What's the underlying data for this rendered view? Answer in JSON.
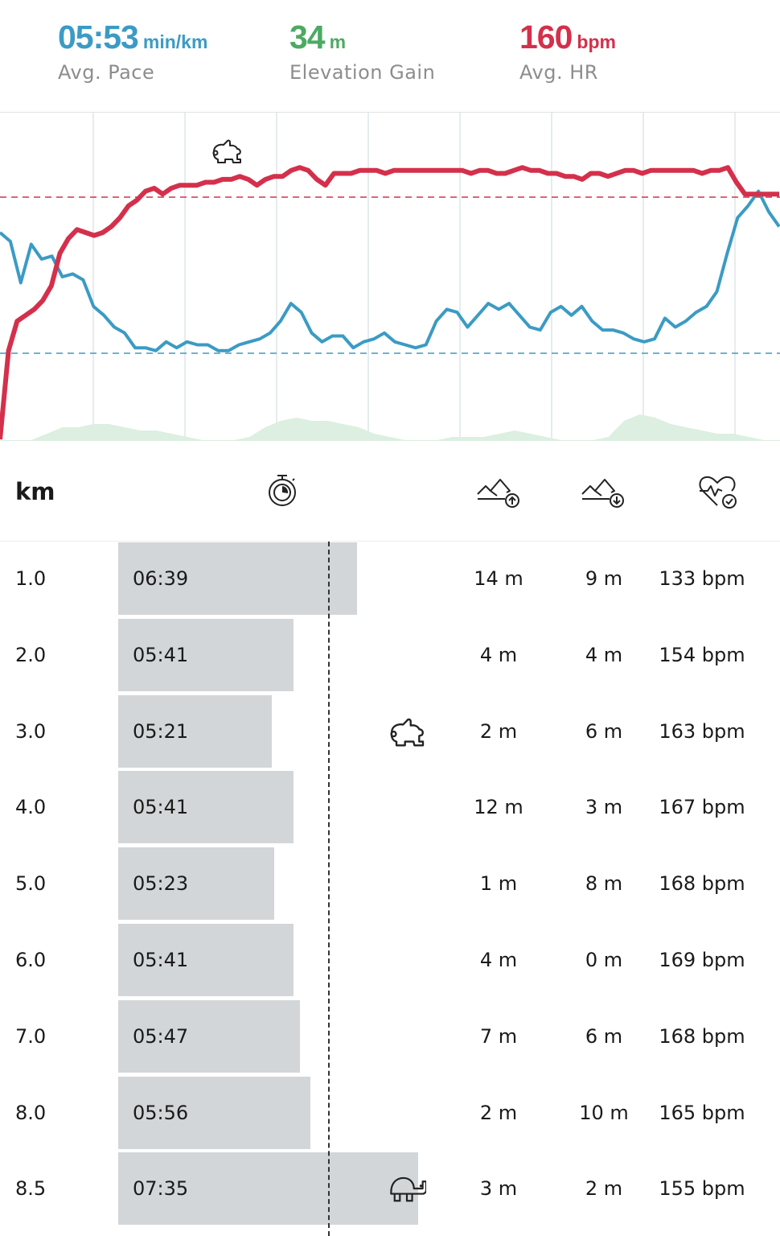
{
  "summary": {
    "pace": {
      "value": "05:53",
      "unit": "min/km",
      "label": "Avg. Pace",
      "color": "#3b9bc4"
    },
    "elevation": {
      "value": "34",
      "unit": "m",
      "label": "Elevation Gain",
      "color": "#4caa63"
    },
    "hr": {
      "value": "160",
      "unit": "bpm",
      "label": "Avg. HR",
      "color": "#d4304b"
    }
  },
  "chart_data": {
    "type": "line",
    "series": [
      {
        "color": "#d4304b",
        "values": [
          0,
          30,
          40,
          42,
          44,
          47,
          52,
          63,
          68,
          71,
          70,
          69,
          70,
          72,
          75,
          79,
          81,
          84,
          85,
          83,
          85,
          86,
          86,
          86,
          87,
          87,
          88,
          88,
          89,
          88,
          86,
          88,
          89,
          89,
          91,
          92,
          91,
          88,
          86,
          90,
          90,
          90,
          91,
          91,
          91,
          90,
          91,
          91,
          91,
          91,
          91,
          91,
          91,
          91,
          91,
          90,
          91,
          91,
          90,
          90,
          91,
          92,
          91,
          91,
          90,
          90,
          89,
          89,
          88,
          90,
          90,
          89,
          90,
          91,
          91,
          90,
          91,
          91,
          91,
          91,
          91,
          91,
          90,
          91,
          91,
          92,
          87,
          83,
          83,
          83,
          83,
          83
        ]
      },
      {
        "color": "#3b9bc4",
        "values": [
          70,
          67,
          53,
          66,
          61,
          62,
          55,
          56,
          54,
          45,
          42,
          38,
          36,
          31,
          31,
          30,
          33,
          31,
          33,
          32,
          32,
          30,
          30,
          32,
          33,
          34,
          36,
          40,
          46,
          43,
          36,
          33,
          35,
          35,
          31,
          33,
          34,
          36,
          33,
          32,
          31,
          32,
          40,
          44,
          43,
          38,
          42,
          46,
          44,
          46,
          42,
          38,
          37,
          43,
          45,
          42,
          45,
          40,
          37,
          37,
          36,
          34,
          33,
          34,
          41,
          38,
          40,
          43,
          45,
          50,
          63,
          75,
          79,
          84,
          77,
          72
        ]
      }
    ],
    "area": {
      "color": "#dcefe0"
    },
    "reference_lines": [
      {
        "color": "#d4304b",
        "style": "dashed"
      },
      {
        "color": "#3b9bc4",
        "style": "dashed"
      }
    ],
    "fast_marker": "rabbit-icon"
  },
  "table": {
    "header": {
      "km_label": "km",
      "icons": [
        "stopwatch-icon",
        "elevation-up-icon",
        "elevation-down-icon",
        "heart-rate-icon"
      ]
    },
    "rows": [
      {
        "km": "1.0",
        "pace": "06:39",
        "pace_seconds": 399,
        "up": "14 m",
        "down": "9 m",
        "hr": "133 bpm"
      },
      {
        "km": "2.0",
        "pace": "05:41",
        "pace_seconds": 341,
        "up": "4 m",
        "down": "4 m",
        "hr": "154 bpm"
      },
      {
        "km": "3.0",
        "pace": "05:21",
        "pace_seconds": 321,
        "up": "2 m",
        "down": "6 m",
        "hr": "163 bpm",
        "marker": "rabbit-icon"
      },
      {
        "km": "4.0",
        "pace": "05:41",
        "pace_seconds": 341,
        "up": "12 m",
        "down": "3 m",
        "hr": "167 bpm"
      },
      {
        "km": "5.0",
        "pace": "05:23",
        "pace_seconds": 323,
        "up": "1 m",
        "down": "8 m",
        "hr": "168 bpm"
      },
      {
        "km": "6.0",
        "pace": "05:41",
        "pace_seconds": 341,
        "up": "4 m",
        "down": "0 m",
        "hr": "169 bpm"
      },
      {
        "km": "7.0",
        "pace": "05:47",
        "pace_seconds": 347,
        "up": "7 m",
        "down": "6 m",
        "hr": "168 bpm"
      },
      {
        "km": "8.0",
        "pace": "05:56",
        "pace_seconds": 356,
        "up": "2 m",
        "down": "10 m",
        "hr": "165 bpm"
      },
      {
        "km": "8.5",
        "pace": "07:35",
        "pace_seconds": 455,
        "up": "3 m",
        "down": "2 m",
        "hr": "155 bpm",
        "marker": "turtle-icon"
      }
    ],
    "avg_pace_seconds": 353
  },
  "colors": {
    "bar": "#d3d6d8",
    "divider": "#e3e3e3"
  }
}
